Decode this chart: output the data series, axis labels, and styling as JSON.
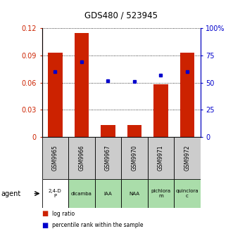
{
  "title": "GDS480 / 523945",
  "samples": [
    "GSM9965",
    "GSM9966",
    "GSM9967",
    "GSM9970",
    "GSM9971",
    "GSM9972"
  ],
  "agents": [
    "2,4-D\nP",
    "dicamba",
    "IAA",
    "NAA",
    "pichlora\nm",
    "quinclora\nc"
  ],
  "agent_colors": [
    "#ffffff",
    "#aaddaa",
    "#aaddaa",
    "#aaddaa",
    "#aaddaa",
    "#aaddaa"
  ],
  "log_ratios": [
    0.093,
    0.115,
    0.013,
    0.013,
    0.058,
    0.093
  ],
  "percentile_ranks_pct": [
    60,
    69,
    52,
    51,
    57,
    60
  ],
  "bar_color": "#cc2200",
  "dot_color": "#0000cc",
  "ylim_left": [
    0,
    0.12
  ],
  "ylim_right": [
    0,
    100
  ],
  "yticks_left": [
    0,
    0.03,
    0.06,
    0.09,
    0.12
  ],
  "yticks_right": [
    0,
    25,
    50,
    75,
    100
  ],
  "ytick_labels_left": [
    "0",
    "0.03",
    "0.06",
    "0.09",
    "0.12"
  ],
  "ytick_labels_right": [
    "0",
    "25",
    "50",
    "75",
    "100%"
  ],
  "left_axis_color": "#cc2200",
  "right_axis_color": "#0000cc",
  "bar_width": 0.55,
  "legend_log_ratio": "log ratio",
  "legend_percentile": "percentile rank within the sample",
  "agent_label": "agent",
  "sample_bg": "#cccccc",
  "title_fontsize": 8.5
}
